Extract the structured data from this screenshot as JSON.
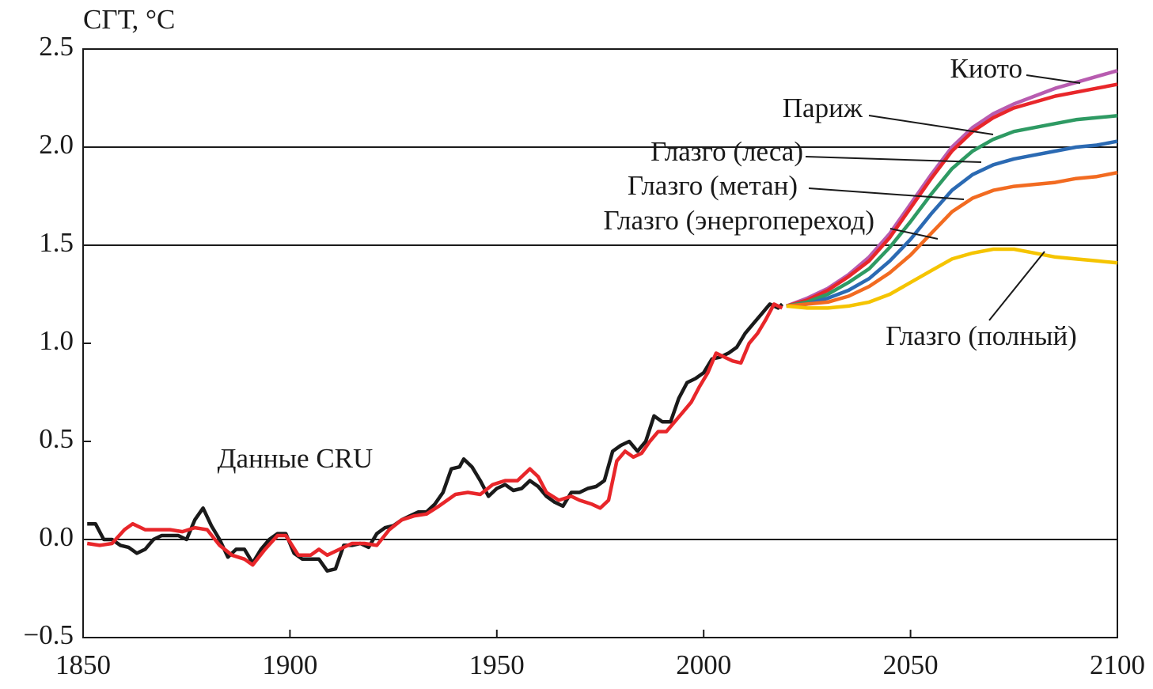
{
  "chart_data": {
    "type": "line",
    "y_label": "СГТ, °C",
    "xlim": [
      1850,
      2100
    ],
    "xticks": [
      1850,
      1900,
      1950,
      2000,
      2050,
      2100
    ],
    "ylim": [
      -0.5,
      2.5
    ],
    "yticks": [
      {
        "value": -0.5,
        "label": "−0.5"
      },
      {
        "value": 0,
        "label": "0.0"
      },
      0.5,
      {
        "value": 1,
        "label": "1.0"
      },
      1.5,
      {
        "value": 2,
        "label": "2.0"
      },
      2.5
    ],
    "reference_lines": [
      0,
      1.5,
      2
    ],
    "series": [
      {
        "name": "Данные CRU",
        "color": "#1a1a1a",
        "x": [
          1851,
          1853,
          1855,
          1857,
          1859,
          1861,
          1863,
          1865,
          1867,
          1869,
          1871,
          1873,
          1875,
          1877,
          1879,
          1881,
          1883,
          1885,
          1887,
          1889,
          1891,
          1893,
          1895,
          1897,
          1899,
          1901,
          1903,
          1905,
          1907,
          1909,
          1911,
          1913,
          1915,
          1917,
          1919,
          1921,
          1923,
          1925,
          1927,
          1929,
          1931,
          1933,
          1935,
          1937,
          1939,
          1941,
          1942,
          1944,
          1946,
          1948,
          1950,
          1952,
          1954,
          1956,
          1958,
          1960,
          1962,
          1964,
          1966,
          1968,
          1970,
          1972,
          1974,
          1976,
          1978,
          1980,
          1982,
          1984,
          1986,
          1988,
          1990,
          1992,
          1994,
          1996,
          1998,
          2000,
          2002,
          2004,
          2006,
          2008,
          2010,
          2012,
          2014,
          2016,
          2018,
          2019
        ],
        "values": [
          0.08,
          0.08,
          0.0,
          0.0,
          -0.03,
          -0.04,
          -0.07,
          -0.05,
          0.0,
          0.02,
          0.02,
          0.02,
          0.0,
          0.1,
          0.16,
          0.07,
          0.0,
          -0.09,
          -0.05,
          -0.05,
          -0.12,
          -0.05,
          0.0,
          0.03,
          0.03,
          -0.07,
          -0.1,
          -0.1,
          -0.1,
          -0.16,
          -0.15,
          -0.03,
          -0.03,
          -0.02,
          -0.04,
          0.03,
          0.06,
          0.07,
          0.1,
          0.12,
          0.14,
          0.14,
          0.18,
          0.24,
          0.36,
          0.37,
          0.41,
          0.37,
          0.3,
          0.22,
          0.26,
          0.28,
          0.25,
          0.26,
          0.3,
          0.27,
          0.22,
          0.19,
          0.17,
          0.24,
          0.24,
          0.26,
          0.27,
          0.3,
          0.45,
          0.48,
          0.5,
          0.45,
          0.5,
          0.63,
          0.6,
          0.6,
          0.72,
          0.8,
          0.82,
          0.85,
          0.92,
          0.93,
          0.95,
          0.98,
          1.05,
          1.1,
          1.15,
          1.2,
          1.18,
          1.2
        ]
      },
      {
        "color": "#e8262a",
        "x": [
          1851,
          1854,
          1857,
          1860,
          1862,
          1865,
          1868,
          1871,
          1874,
          1877,
          1880,
          1883,
          1886,
          1889,
          1891,
          1894,
          1897,
          1899,
          1902,
          1905,
          1907,
          1909,
          1912,
          1915,
          1918,
          1921,
          1924,
          1927,
          1930,
          1933,
          1936,
          1938,
          1940,
          1943,
          1946,
          1949,
          1952,
          1955,
          1958,
          1960,
          1962,
          1965,
          1968,
          1970,
          1973,
          1975,
          1977,
          1979,
          1981,
          1983,
          1985,
          1987,
          1989,
          1991,
          1993,
          1995,
          1997,
          1999,
          2001,
          2003,
          2005,
          2007,
          2009,
          2011,
          2013,
          2015,
          2017,
          2019
        ],
        "values": [
          -0.02,
          -0.03,
          -0.02,
          0.05,
          0.08,
          0.05,
          0.05,
          0.05,
          0.04,
          0.06,
          0.05,
          -0.03,
          -0.08,
          -0.1,
          -0.13,
          -0.05,
          0.02,
          0.02,
          -0.08,
          -0.08,
          -0.05,
          -0.08,
          -0.05,
          -0.02,
          -0.02,
          -0.03,
          0.05,
          0.1,
          0.12,
          0.13,
          0.17,
          0.2,
          0.23,
          0.24,
          0.23,
          0.28,
          0.3,
          0.3,
          0.36,
          0.32,
          0.24,
          0.2,
          0.22,
          0.2,
          0.18,
          0.16,
          0.2,
          0.4,
          0.45,
          0.42,
          0.44,
          0.5,
          0.55,
          0.55,
          0.6,
          0.65,
          0.7,
          0.78,
          0.85,
          0.95,
          0.93,
          0.91,
          0.9,
          1.0,
          1.05,
          1.12,
          1.2,
          1.18
        ]
      },
      {
        "name": "Киото",
        "color": "#b85cb0",
        "x": [
          2020,
          2025,
          2030,
          2035,
          2040,
          2045,
          2050,
          2055,
          2060,
          2065,
          2070,
          2075,
          2080,
          2085,
          2090,
          2095,
          2100
        ],
        "values": [
          1.19,
          1.23,
          1.28,
          1.35,
          1.44,
          1.56,
          1.71,
          1.86,
          2.0,
          2.1,
          2.17,
          2.22,
          2.26,
          2.3,
          2.33,
          2.36,
          2.39
        ]
      },
      {
        "name": "Париж",
        "color": "#e8262a",
        "x": [
          2020,
          2025,
          2030,
          2035,
          2040,
          2045,
          2050,
          2055,
          2060,
          2065,
          2070,
          2075,
          2080,
          2085,
          2090,
          2095,
          2100
        ],
        "values": [
          1.19,
          1.22,
          1.27,
          1.34,
          1.42,
          1.54,
          1.69,
          1.84,
          1.98,
          2.08,
          2.15,
          2.2,
          2.23,
          2.26,
          2.28,
          2.3,
          2.32
        ]
      },
      {
        "name": "Глазго (леса)",
        "color": "#2e9a63",
        "x": [
          2020,
          2025,
          2030,
          2035,
          2040,
          2045,
          2050,
          2055,
          2060,
          2065,
          2070,
          2075,
          2080,
          2085,
          2090,
          2095,
          2100
        ],
        "values": [
          1.19,
          1.21,
          1.25,
          1.31,
          1.38,
          1.49,
          1.62,
          1.76,
          1.89,
          1.98,
          2.04,
          2.08,
          2.1,
          2.12,
          2.14,
          2.15,
          2.16
        ]
      },
      {
        "name": "Глазго (метан)",
        "color": "#2b6ab3",
        "x": [
          2020,
          2025,
          2030,
          2035,
          2040,
          2045,
          2050,
          2055,
          2060,
          2065,
          2070,
          2075,
          2080,
          2085,
          2090,
          2095,
          2100
        ],
        "values": [
          1.19,
          1.2,
          1.23,
          1.27,
          1.33,
          1.42,
          1.53,
          1.66,
          1.78,
          1.86,
          1.91,
          1.94,
          1.96,
          1.98,
          2.0,
          2.01,
          2.03
        ]
      },
      {
        "name": "Глазго (энергопереход)",
        "color": "#f26b21",
        "x": [
          2020,
          2025,
          2030,
          2035,
          2040,
          2045,
          2050,
          2055,
          2060,
          2065,
          2070,
          2075,
          2080,
          2085,
          2090,
          2095,
          2100
        ],
        "values": [
          1.19,
          1.2,
          1.21,
          1.24,
          1.29,
          1.36,
          1.45,
          1.56,
          1.67,
          1.74,
          1.78,
          1.8,
          1.81,
          1.82,
          1.84,
          1.85,
          1.87
        ]
      },
      {
        "name": "Глазго (полный)",
        "color": "#f5c400",
        "x": [
          2020,
          2025,
          2030,
          2035,
          2040,
          2045,
          2050,
          2055,
          2060,
          2065,
          2070,
          2075,
          2080,
          2085,
          2090,
          2095,
          2100
        ],
        "values": [
          1.19,
          1.18,
          1.18,
          1.19,
          1.21,
          1.25,
          1.31,
          1.37,
          1.43,
          1.46,
          1.48,
          1.48,
          1.46,
          1.44,
          1.43,
          1.42,
          1.41
        ]
      }
    ]
  }
}
